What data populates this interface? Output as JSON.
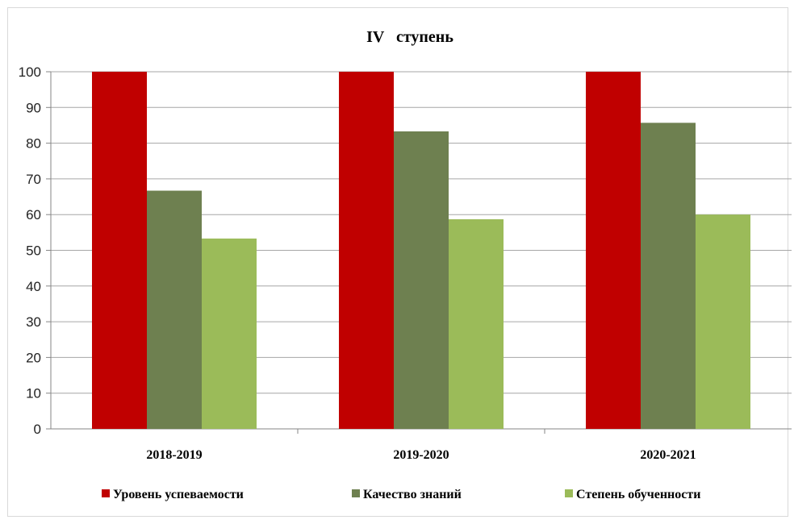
{
  "chart_data": {
    "type": "bar",
    "title": "IV   ступень",
    "xlabel": "",
    "ylabel": "",
    "ylim": [
      0,
      100
    ],
    "yticks": [
      0,
      10,
      20,
      30,
      40,
      50,
      60,
      70,
      80,
      90,
      100
    ],
    "categories": [
      "2018-2019",
      "2019-2020",
      "2020-2021"
    ],
    "series": [
      {
        "name": "Уровень успеваемости",
        "color": "#c00000",
        "values": [
          100,
          100,
          100
        ]
      },
      {
        "name": "Качество знаний",
        "color": "#6e8050",
        "values": [
          66.7,
          83.3,
          85.7
        ]
      },
      {
        "name": "Степень обученности",
        "color": "#9bbb59",
        "values": [
          53.3,
          58.7,
          60
        ]
      }
    ],
    "grid": true,
    "legend": "bottom"
  }
}
